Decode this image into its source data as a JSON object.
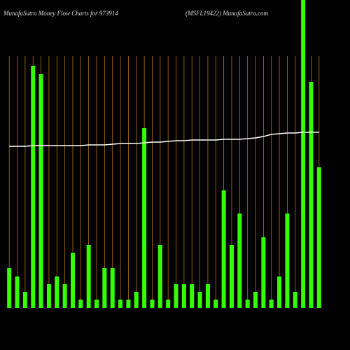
{
  "chart_data": {
    "type": "bar",
    "title": "MunafaSutra  Money Flow  Charts for 973914",
    "subtitle": "(MSFL19422) MunafaSutra.com",
    "categories": [
      null,
      null,
      null,
      null,
      null,
      null,
      null,
      null,
      null,
      null,
      null,
      null,
      null,
      null,
      null,
      null,
      null,
      null,
      null,
      null,
      null,
      null,
      null,
      null,
      null,
      null,
      null,
      null,
      null,
      null,
      null,
      null,
      null,
      null,
      null,
      null,
      null,
      null,
      null,
      null
    ],
    "series": [
      {
        "color": "#33ff00",
        "values": [
          57,
          45,
          23,
          346,
          334,
          34,
          45,
          34,
          79,
          12,
          90,
          12,
          57,
          57,
          12,
          12,
          23,
          257,
          12,
          90,
          12,
          34,
          34,
          34,
          23,
          34,
          12,
          168,
          90,
          135,
          12,
          23,
          101,
          12,
          45,
          135,
          23,
          440,
          323,
          201
        ]
      },
      {
        "type": "line",
        "color": "#ffffff",
        "values": [
          231,
          231,
          231,
          232,
          232,
          232,
          232,
          232,
          232,
          232,
          233,
          233,
          233,
          234,
          235,
          235,
          235,
          236,
          237,
          237,
          238,
          239,
          239,
          240,
          240,
          240,
          240,
          241,
          241,
          241,
          242,
          243,
          245,
          248,
          249,
          250,
          250,
          251,
          251,
          251
        ]
      }
    ],
    "ylim": [
      0,
      440
    ],
    "grid": true,
    "grid_color": "#b8740f"
  }
}
